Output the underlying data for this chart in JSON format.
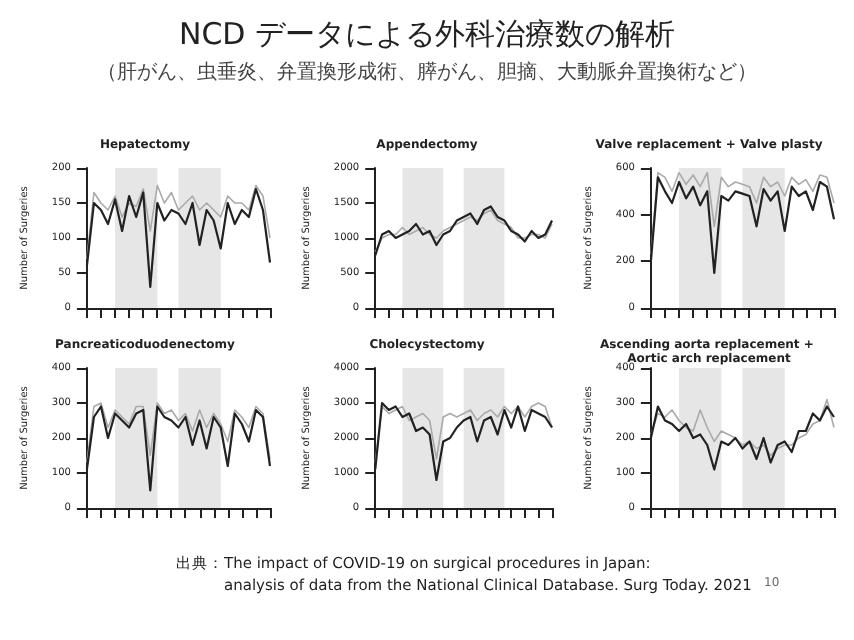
{
  "chart_data": [
    {
      "type": "other",
      "title": "NCD データによる外科治療数の解析",
      "subtitle": "（肝がん、虫垂炎、弁置換形成術、膵がん、胆摘、大動脈弁置換術など）",
      "annotations": [
        "出典：The impact of COVID-19 on surgical procedures in Japan:\n　　　analysis of data from the National Clinical Database. Surg Today. 2021",
        "10"
      ]
    },
    {
      "type": "line",
      "title": "Hepatectomy",
      "ylabel": "Number of Surgeries",
      "categories": [
        null,
        null,
        null,
        null,
        null,
        null,
        null,
        null,
        null,
        null,
        null,
        null,
        null,
        null,
        null,
        null,
        null,
        null,
        null,
        null,
        null,
        null,
        null,
        null,
        null,
        null,
        null
      ],
      "ylim": [
        0,
        200
      ],
      "yticks": [
        0,
        50,
        100,
        150,
        200
      ],
      "tick_labels": "y",
      "grid": false,
      "series": [
        {
          "color": "#aaaaaa",
          "values": [
            70,
            165,
            150,
            140,
            160,
            130,
            150,
            145,
            170,
            110,
            175,
            150,
            165,
            140,
            150,
            160,
            140,
            150,
            140,
            130,
            160,
            150,
            150,
            140,
            175,
            160,
            100
          ]
        },
        {
          "color": "#222222",
          "values": [
            60,
            150,
            140,
            120,
            155,
            110,
            160,
            130,
            165,
            30,
            150,
            125,
            140,
            135,
            120,
            150,
            90,
            140,
            125,
            85,
            150,
            120,
            140,
            130,
            170,
            140,
            65
          ]
        }
      ]
    },
    {
      "type": "line",
      "title": "Appendectomy",
      "ylabel": "Number of Surgeries",
      "categories": [
        null,
        null,
        null,
        null,
        null,
        null,
        null,
        null,
        null,
        null,
        null,
        null,
        null,
        null,
        null,
        null,
        null,
        null,
        null,
        null,
        null,
        null,
        null,
        null,
        null,
        null,
        null
      ],
      "ylim": [
        0,
        2000
      ],
      "yticks": [
        0,
        500,
        1000,
        1500,
        2000
      ],
      "tick_labels": "y",
      "grid": false,
      "series": [
        {
          "color": "#aaaaaa",
          "values": [
            800,
            1000,
            1050,
            1050,
            1150,
            1050,
            1100,
            1150,
            1050,
            1000,
            1100,
            1150,
            1200,
            1250,
            1300,
            1250,
            1350,
            1400,
            1250,
            1200,
            1150,
            1000,
            1000,
            1050,
            1050,
            1000,
            1200
          ]
        },
        {
          "color": "#222222",
          "values": [
            750,
            1050,
            1100,
            1000,
            1050,
            1100,
            1200,
            1050,
            1100,
            900,
            1050,
            1100,
            1250,
            1300,
            1350,
            1200,
            1400,
            1450,
            1300,
            1250,
            1100,
            1050,
            950,
            1100,
            1000,
            1050,
            1250
          ]
        }
      ]
    },
    {
      "type": "line",
      "title": "Valve replacement + Valve plasty",
      "ylabel": "Number of Surgeries",
      "categories": [
        null,
        null,
        null,
        null,
        null,
        null,
        null,
        null,
        null,
        null,
        null,
        null,
        null,
        null,
        null,
        null,
        null,
        null,
        null,
        null,
        null,
        null,
        null,
        null,
        null,
        null,
        null
      ],
      "ylim": [
        0,
        600
      ],
      "yticks": [
        0,
        200,
        400,
        600
      ],
      "tick_labels": "y",
      "grid": false,
      "series": [
        {
          "color": "#aaaaaa",
          "values": [
            230,
            580,
            560,
            500,
            580,
            530,
            570,
            520,
            580,
            350,
            560,
            520,
            540,
            530,
            520,
            450,
            560,
            520,
            540,
            480,
            560,
            530,
            550,
            500,
            570,
            560,
            450
          ]
        },
        {
          "color": "#222222",
          "values": [
            200,
            560,
            500,
            450,
            540,
            470,
            520,
            440,
            500,
            150,
            480,
            460,
            500,
            490,
            480,
            350,
            510,
            460,
            500,
            330,
            520,
            480,
            500,
            420,
            540,
            520,
            380
          ]
        }
      ]
    },
    {
      "type": "line",
      "title": "Pancreaticoduodenectomy",
      "ylabel": "Number of Surgeries",
      "categories": [
        null,
        null,
        null,
        null,
        null,
        null,
        null,
        null,
        null,
        null,
        null,
        null,
        null,
        null,
        null,
        null,
        null,
        null,
        null,
        null,
        null,
        null,
        null,
        null,
        null,
        null,
        null
      ],
      "ylim": [
        0,
        400
      ],
      "yticks": [
        0,
        100,
        200,
        300,
        400
      ],
      "tick_labels": "y",
      "grid": false,
      "series": [
        {
          "color": "#aaaaaa",
          "values": [
            130,
            290,
            300,
            230,
            280,
            260,
            240,
            290,
            290,
            150,
            300,
            270,
            280,
            250,
            270,
            220,
            280,
            230,
            270,
            240,
            190,
            280,
            260,
            230,
            290,
            270,
            140
          ]
        },
        {
          "color": "#222222",
          "values": [
            110,
            260,
            290,
            200,
            270,
            250,
            230,
            270,
            280,
            50,
            290,
            260,
            250,
            230,
            260,
            180,
            250,
            170,
            260,
            230,
            120,
            270,
            240,
            190,
            280,
            260,
            120
          ]
        }
      ]
    },
    {
      "type": "line",
      "title": "Cholecystectomy",
      "ylabel": "Number of Surgeries",
      "categories": [
        null,
        null,
        null,
        null,
        null,
        null,
        null,
        null,
        null,
        null,
        null,
        null,
        null,
        null,
        null,
        null,
        null,
        null,
        null,
        null,
        null,
        null,
        null,
        null,
        null,
        null,
        null
      ],
      "ylim": [
        0,
        4000
      ],
      "yticks": [
        0,
        1000,
        2000,
        3000,
        4000
      ],
      "tick_labels": "y",
      "grid": false,
      "series": [
        {
          "color": "#aaaaaa",
          "values": [
            1300,
            2900,
            2700,
            2800,
            2900,
            2500,
            2600,
            2700,
            2500,
            1400,
            2600,
            2700,
            2600,
            2700,
            2800,
            2500,
            2700,
            2800,
            2600,
            2900,
            2700,
            2900,
            2600,
            2900,
            3000,
            2900,
            2300
          ]
        },
        {
          "color": "#222222",
          "values": [
            1100,
            3000,
            2800,
            2900,
            2600,
            2700,
            2200,
            2300,
            2100,
            800,
            1900,
            2000,
            2300,
            2500,
            2600,
            1900,
            2500,
            2600,
            2100,
            2800,
            2300,
            2900,
            2200,
            2800,
            2700,
            2600,
            2300
          ]
        }
      ]
    },
    {
      "type": "line",
      "title": "Ascending aorta replacement + Aortic arch replacement",
      "ylabel": "Number of Surgeries",
      "categories": [
        null,
        null,
        null,
        null,
        null,
        null,
        null,
        null,
        null,
        null,
        null,
        null,
        null,
        null,
        null,
        null,
        null,
        null,
        null,
        null,
        null,
        null,
        null,
        null,
        null,
        null,
        null
      ],
      "ylim": [
        0,
        400
      ],
      "yticks": [
        0,
        100,
        200,
        300,
        400
      ],
      "tick_labels": "y",
      "grid": false,
      "series": [
        {
          "color": "#aaaaaa",
          "values": [
            210,
            270,
            260,
            280,
            250,
            230,
            220,
            280,
            230,
            190,
            220,
            210,
            200,
            180,
            190,
            170,
            180,
            150,
            170,
            180,
            180,
            200,
            210,
            240,
            250,
            310,
            230
          ]
        },
        {
          "color": "#222222",
          "values": [
            200,
            290,
            250,
            240,
            220,
            240,
            200,
            210,
            180,
            110,
            190,
            180,
            200,
            170,
            190,
            140,
            200,
            130,
            180,
            190,
            160,
            220,
            220,
            270,
            250,
            290,
            260
          ]
        }
      ]
    }
  ]
}
